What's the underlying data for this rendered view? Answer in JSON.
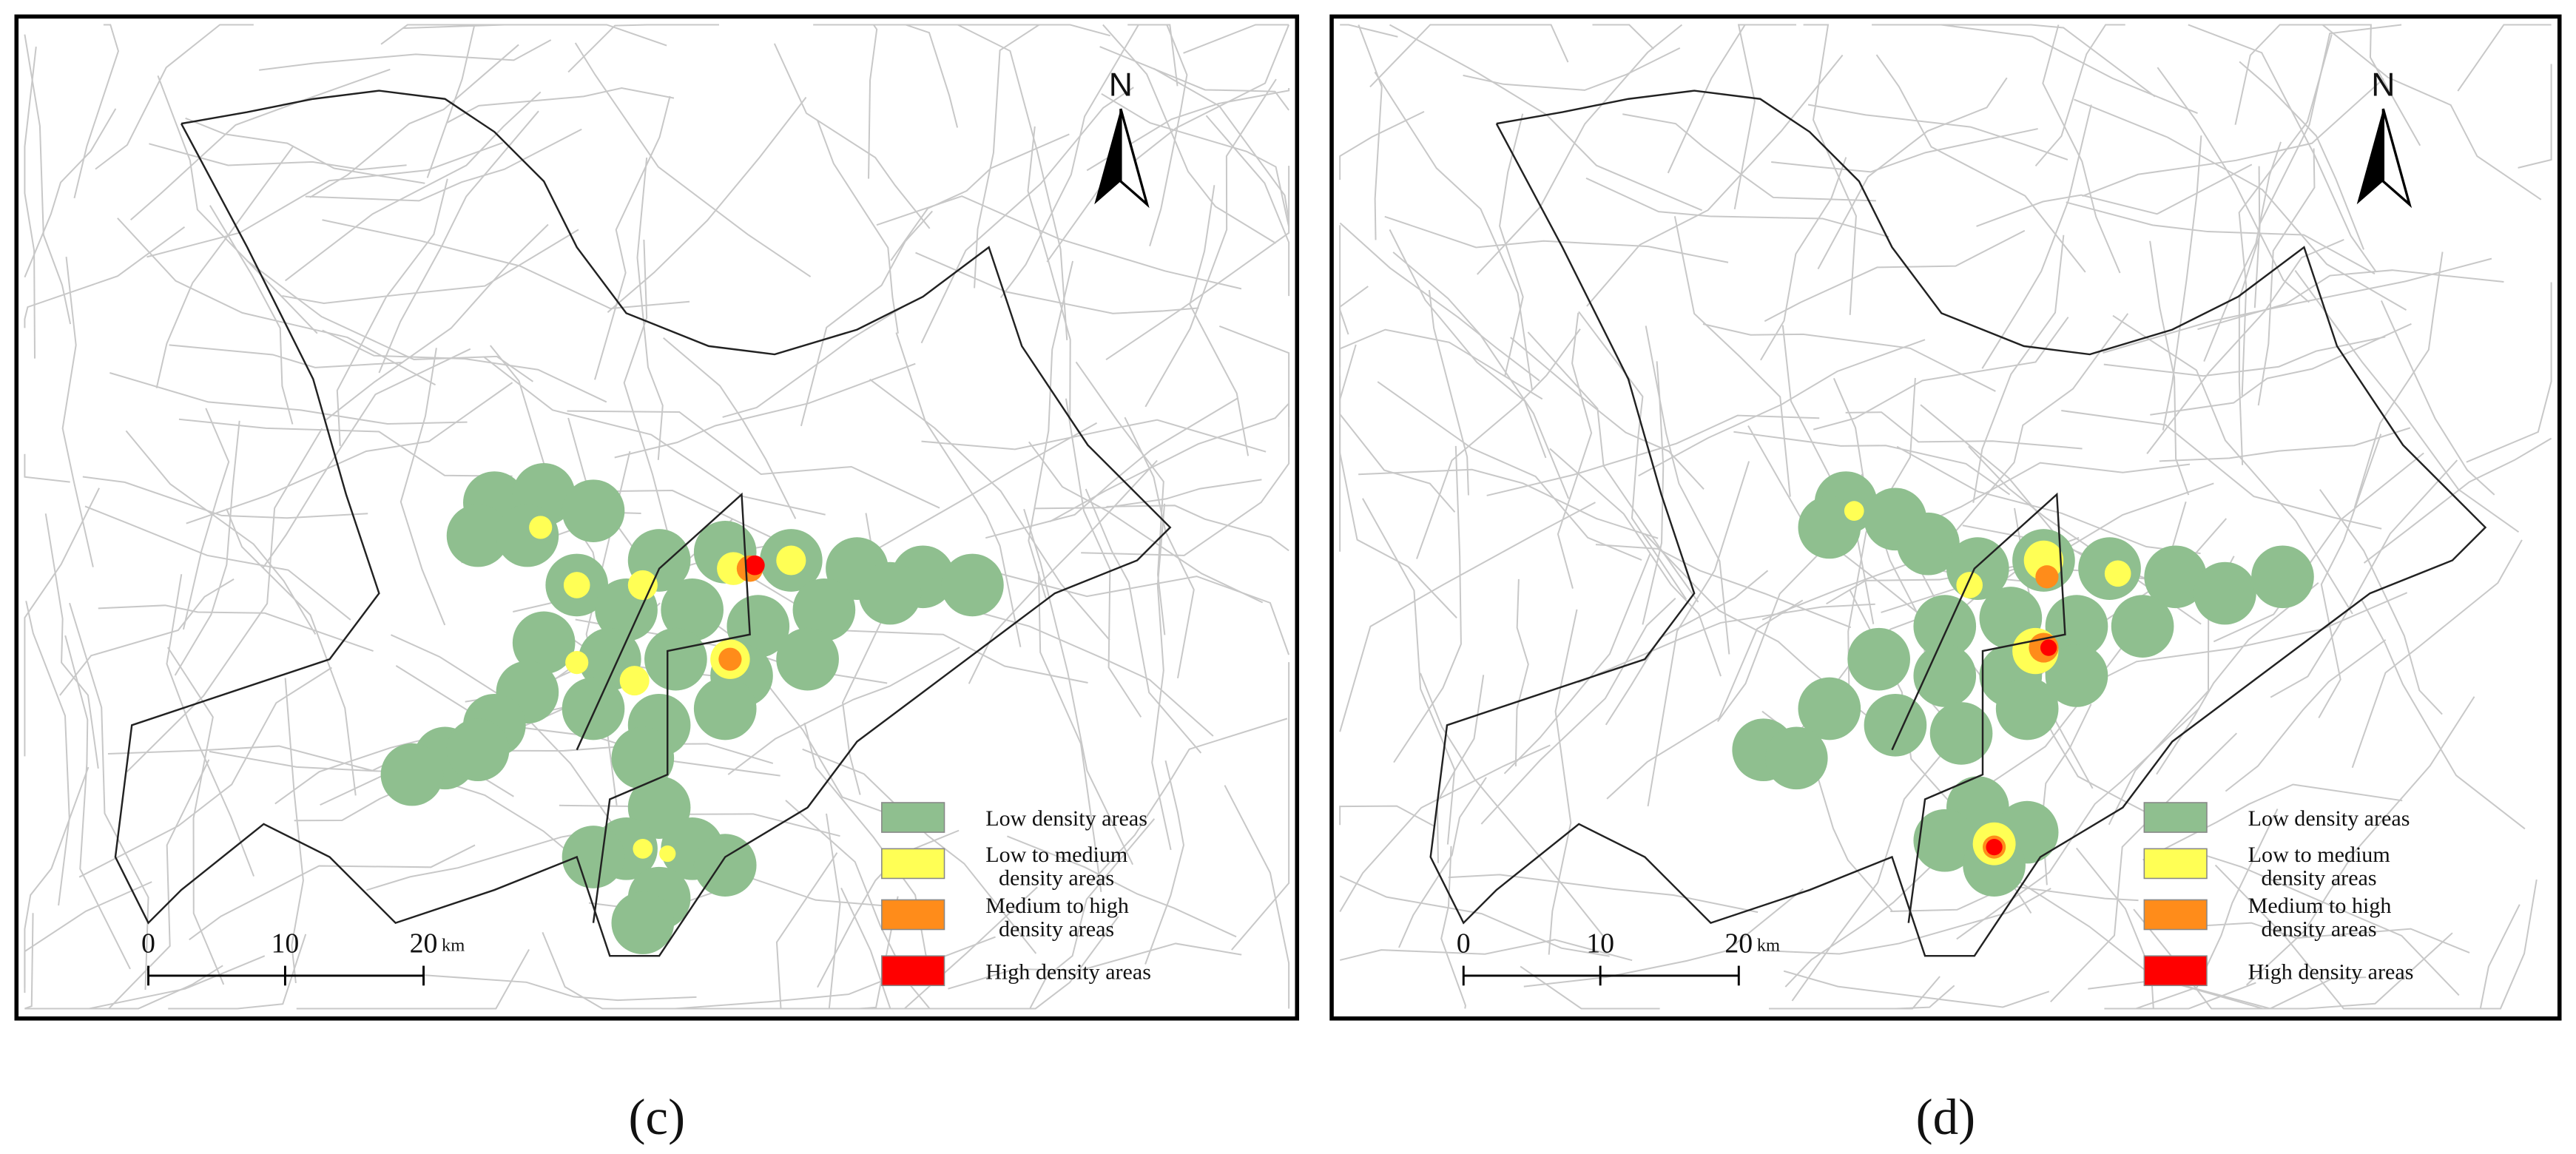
{
  "panels": [
    {
      "caption": "(c)",
      "north": "N",
      "scale": {
        "labels": [
          "0",
          "10",
          "20"
        ],
        "unit": "km"
      },
      "legend": [
        {
          "label": [
            "Low density areas"
          ],
          "color": "#8fbf8f"
        },
        {
          "label": [
            "Low to medium",
            "density areas"
          ],
          "color": "#ffff55"
        },
        {
          "label": [
            "Medium to high",
            "density areas"
          ],
          "color": "#ff8c1a"
        },
        {
          "label": [
            "High density areas"
          ],
          "color": "#ff0000"
        }
      ]
    },
    {
      "caption": "(d)",
      "north": "N",
      "scale": {
        "labels": [
          "0",
          "10",
          "20"
        ],
        "unit": "km"
      },
      "legend": [
        {
          "label": [
            "Low density areas"
          ],
          "color": "#8fbf8f"
        },
        {
          "label": [
            "Low to medium",
            "density areas"
          ],
          "color": "#ffff55"
        },
        {
          "label": [
            "Medium to high",
            "density areas"
          ],
          "color": "#ff8c1a"
        },
        {
          "label": [
            "High density areas"
          ],
          "color": "#ff0000"
        }
      ]
    }
  ]
}
